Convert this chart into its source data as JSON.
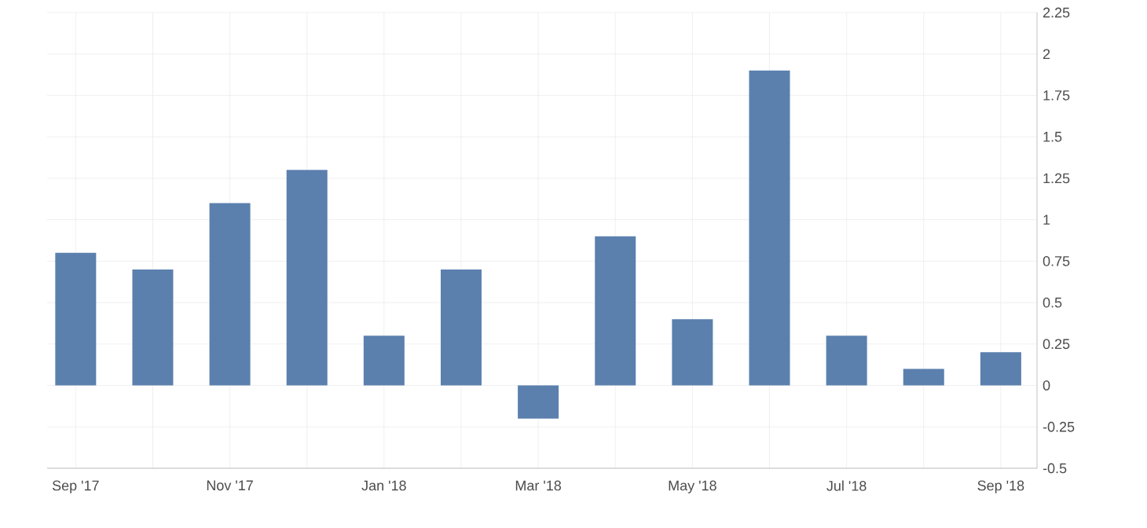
{
  "chart_data": {
    "type": "bar",
    "categories": [
      "Sep '17",
      null,
      "Nov '17",
      null,
      "Jan '18",
      null,
      "Mar '18",
      null,
      "May '18",
      null,
      "Jul '18",
      null,
      "Sep '18"
    ],
    "values": [
      0.8,
      0.7,
      1.1,
      1.3,
      0.3,
      0.7,
      -0.2,
      0.9,
      0.4,
      1.9,
      0.3,
      0.1,
      0.2
    ],
    "color": "#5b80ae",
    "ylim": [
      -0.5,
      2.25
    ],
    "yticks": [
      -0.5,
      -0.25,
      0,
      0.25,
      0.5,
      0.75,
      1,
      1.25,
      1.5,
      1.75,
      2,
      2.25
    ],
    "grid": true
  }
}
